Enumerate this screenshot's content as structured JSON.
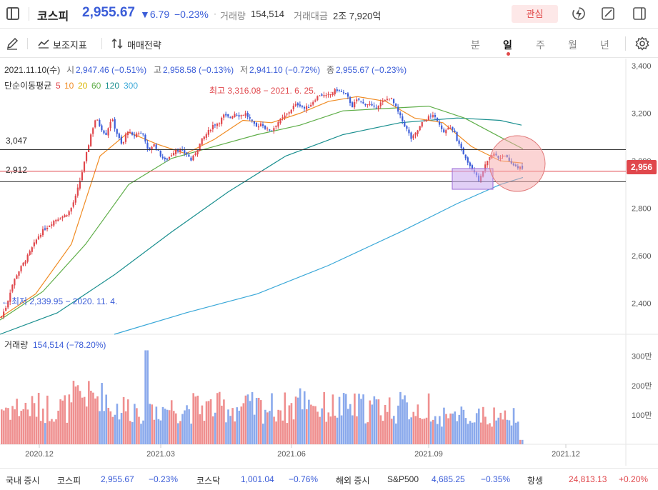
{
  "header": {
    "index_name": "코스피",
    "price": "2,955.67",
    "change": "▼6.79",
    "change_pct": "−0.23%",
    "dot": "·",
    "volume_label": "거래량",
    "volume_value": "154,514",
    "amount_label": "거래대금",
    "amount_value": "2조 7,920억",
    "favorite_label": "관심"
  },
  "toolbar": {
    "indicator_label": "보조지표",
    "strategy_label": "매매전략",
    "periods": [
      "분",
      "일",
      "주",
      "월",
      "년"
    ],
    "active_period": "일"
  },
  "info": {
    "date": "2021.11.10(수)",
    "open_label": "시",
    "open": "2,947.46 (−0.51%)",
    "high_label": "고",
    "high": "2,958.58 (−0.13%)",
    "low_label": "저",
    "low": "2,941.10 (−0.72%)",
    "close_label": "종",
    "close": "2,955.67 (−0.23%)",
    "ma_label": "단순이동평균",
    "ma_periods": [
      "5",
      "10",
      "20",
      "60",
      "120",
      "300"
    ],
    "ma_colors": [
      "#e0474c",
      "#f08c24",
      "#d9b400",
      "#5fae49",
      "#1a8f8f",
      "#3aa8d8"
    ]
  },
  "annotations": {
    "high": "최고 3,316.08 − 2021. 6. 25.",
    "low": "최저 2,339.95 − 2020. 11. 4.",
    "line_3047": "3,047",
    "line_2912": "2,912",
    "current_badge": "2,956"
  },
  "chart_data": {
    "type": "candlestick",
    "y_ticks": [
      "3,400",
      "3,200",
      "3,000",
      "2,800",
      "2,600",
      "2,400"
    ],
    "y_tick_values": [
      3400,
      3200,
      3000,
      2800,
      2600,
      2400
    ],
    "ylim": [
      2270,
      3430
    ],
    "x_ticks": [
      "2020.12",
      "2021.03",
      "2021.06",
      "2021.09",
      "2021.12"
    ],
    "horizontal_levels": [
      3047,
      2956,
      2912
    ],
    "close_path": [
      [
        0,
        2340
      ],
      [
        8,
        2390
      ],
      [
        15,
        2470
      ],
      [
        22,
        2520
      ],
      [
        30,
        2560
      ],
      [
        38,
        2600
      ],
      [
        45,
        2640
      ],
      [
        52,
        2680
      ],
      [
        60,
        2710
      ],
      [
        68,
        2730
      ],
      [
        75,
        2750
      ],
      [
        82,
        2760
      ],
      [
        90,
        2770
      ],
      [
        97,
        2790
      ],
      [
        105,
        2850
      ],
      [
        112,
        2930
      ],
      [
        120,
        3030
      ],
      [
        126,
        3110
      ],
      [
        133,
        3180
      ],
      [
        140,
        3140
      ],
      [
        147,
        3110
      ],
      [
        155,
        3180
      ],
      [
        162,
        3120
      ],
      [
        170,
        3060
      ],
      [
        177,
        3130
      ],
      [
        185,
        3100
      ],
      [
        192,
        3120
      ],
      [
        200,
        3110
      ],
      [
        207,
        3040
      ],
      [
        215,
        3070
      ],
      [
        222,
        3030
      ],
      [
        230,
        3000
      ],
      [
        237,
        3020
      ],
      [
        245,
        3050
      ],
      [
        252,
        3040
      ],
      [
        260,
        3030
      ],
      [
        267,
        3000
      ],
      [
        275,
        3050
      ],
      [
        282,
        3090
      ],
      [
        290,
        3120
      ],
      [
        297,
        3150
      ],
      [
        305,
        3160
      ],
      [
        312,
        3190
      ],
      [
        320,
        3180
      ],
      [
        327,
        3200
      ],
      [
        335,
        3190
      ],
      [
        342,
        3200
      ],
      [
        350,
        3170
      ],
      [
        357,
        3140
      ],
      [
        365,
        3160
      ],
      [
        372,
        3130
      ],
      [
        380,
        3130
      ],
      [
        387,
        3160
      ],
      [
        395,
        3180
      ],
      [
        402,
        3200
      ],
      [
        410,
        3230
      ],
      [
        417,
        3240
      ],
      [
        425,
        3220
      ],
      [
        432,
        3230
      ],
      [
        440,
        3260
      ],
      [
        447,
        3280
      ],
      [
        455,
        3270
      ],
      [
        462,
        3280
      ],
      [
        470,
        3300
      ],
      [
        477,
        3290
      ],
      [
        485,
        3270
      ],
      [
        492,
        3230
      ],
      [
        500,
        3260
      ],
      [
        507,
        3240
      ],
      [
        515,
        3240
      ],
      [
        522,
        3220
      ],
      [
        530,
        3240
      ],
      [
        537,
        3250
      ],
      [
        545,
        3270
      ],
      [
        552,
        3230
      ],
      [
        560,
        3180
      ],
      [
        567,
        3140
      ],
      [
        575,
        3090
      ],
      [
        582,
        3120
      ],
      [
        590,
        3160
      ],
      [
        597,
        3180
      ],
      [
        605,
        3190
      ],
      [
        612,
        3170
      ],
      [
        620,
        3120
      ],
      [
        627,
        3140
      ],
      [
        635,
        3120
      ],
      [
        642,
        3060
      ],
      [
        650,
        3020
      ],
      [
        657,
        2980
      ],
      [
        665,
        2950
      ],
      [
        670,
        2910
      ],
      [
        675,
        2960
      ],
      [
        682,
        3000
      ],
      [
        690,
        3030
      ],
      [
        697,
        3010
      ],
      [
        705,
        3030
      ],
      [
        712,
        2990
      ],
      [
        720,
        2980
      ],
      [
        727,
        2970
      ],
      [
        732,
        2956
      ]
    ],
    "ma_series": [
      {
        "name": "300",
        "color": "#3aa8d8",
        "points": [
          [
            160,
            2270
          ],
          [
            260,
            2360
          ],
          [
            360,
            2440
          ],
          [
            460,
            2560
          ],
          [
            560,
            2700
          ],
          [
            640,
            2820
          ],
          [
            700,
            2900
          ],
          [
            732,
            2930
          ]
        ]
      },
      {
        "name": "120",
        "color": "#1a8f8f",
        "points": [
          [
            0,
            2270
          ],
          [
            80,
            2360
          ],
          [
            160,
            2520
          ],
          [
            240,
            2700
          ],
          [
            320,
            2870
          ],
          [
            400,
            3020
          ],
          [
            480,
            3110
          ],
          [
            560,
            3160
          ],
          [
            640,
            3180
          ],
          [
            700,
            3170
          ],
          [
            730,
            3150
          ]
        ]
      },
      {
        "name": "60",
        "color": "#5fae49",
        "points": [
          [
            0,
            2330
          ],
          [
            60,
            2450
          ],
          [
            120,
            2650
          ],
          [
            180,
            2900
          ],
          [
            240,
            3010
          ],
          [
            300,
            3060
          ],
          [
            360,
            3110
          ],
          [
            420,
            3150
          ],
          [
            480,
            3210
          ],
          [
            540,
            3220
          ],
          [
            600,
            3230
          ],
          [
            650,
            3180
          ],
          [
            700,
            3100
          ],
          [
            732,
            3050
          ]
        ]
      },
      {
        "name": "20",
        "color": "#f08c24",
        "points": [
          [
            0,
            2340
          ],
          [
            50,
            2440
          ],
          [
            100,
            2650
          ],
          [
            140,
            3020
          ],
          [
            180,
            3120
          ],
          [
            220,
            3070
          ],
          [
            260,
            3030
          ],
          [
            300,
            3090
          ],
          [
            340,
            3170
          ],
          [
            380,
            3160
          ],
          [
            420,
            3200
          ],
          [
            460,
            3250
          ],
          [
            500,
            3270
          ],
          [
            540,
            3250
          ],
          [
            580,
            3180
          ],
          [
            620,
            3160
          ],
          [
            660,
            3060
          ],
          [
            700,
            3000
          ],
          [
            732,
            2990
          ]
        ]
      }
    ],
    "volume": {
      "label": "거래량",
      "value": "154,514 (−78.20%)",
      "y_ticks": [
        "300만",
        "200만",
        "100만"
      ],
      "y_tick_values": [
        300,
        200,
        100
      ],
      "ylim": [
        0,
        360
      ]
    }
  },
  "bottombar": {
    "domestic_label": "국내 증시",
    "kospi_label": "코스피",
    "kospi_value": "2,955.67",
    "kospi_change": "−0.23%",
    "kosdaq_label": "코스닥",
    "kosdaq_value": "1,001.04",
    "kosdaq_change": "−0.76%",
    "overseas_label": "해외 증시",
    "sp500_label": "S&P500",
    "sp500_value": "4,685.25",
    "sp500_change": "−0.35%",
    "hangseng_label": "항셍",
    "hangseng_value": "24,813.13",
    "hangseng_change": "+0.20%"
  },
  "colors": {
    "up": "#e0474c",
    "down": "#3b5dd8",
    "vol_up": "#ef8f8f",
    "vol_down": "#8aa9ec",
    "badge": "#e0474c"
  }
}
